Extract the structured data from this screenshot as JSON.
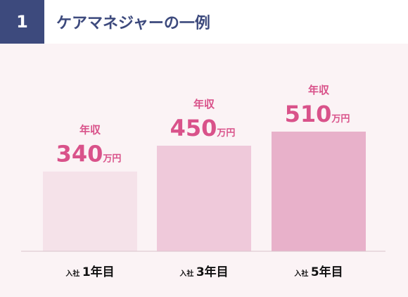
{
  "header": {
    "number": "1",
    "title": "ケアマネジャーの一例"
  },
  "chart_data": {
    "type": "bar",
    "categories": [
      {
        "prefix": "入社",
        "label": "1年目"
      },
      {
        "prefix": "入社",
        "label": "3年目"
      },
      {
        "prefix": "入社",
        "label": "5年目"
      }
    ],
    "values": [
      340,
      450,
      510
    ],
    "value_prefix": "年収",
    "unit": "万円",
    "colors": [
      "#f5e2e9",
      "#efc9da",
      "#e8b1ca"
    ],
    "label_color": "#d9528a",
    "axis_color": "#d8c3cc"
  }
}
